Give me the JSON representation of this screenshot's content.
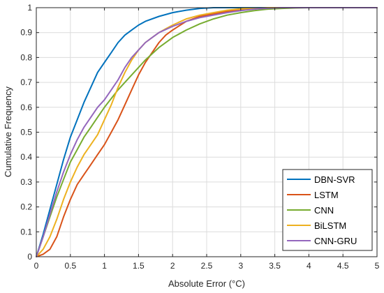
{
  "chart_data": {
    "type": "line",
    "title": "",
    "xlabel": "Absolute Error (°C)",
    "ylabel": "Cumulative Frequency",
    "xlim": [
      0,
      5
    ],
    "ylim": [
      0,
      1
    ],
    "x_ticks": [
      "0",
      "0.5",
      "1",
      "1.5",
      "2",
      "2.5",
      "3",
      "3.5",
      "4",
      "4.5",
      "5"
    ],
    "y_ticks": [
      "0",
      "0.1",
      "0.2",
      "0.3",
      "0.4",
      "0.5",
      "0.6",
      "0.7",
      "0.8",
      "0.9",
      "1"
    ],
    "grid": true,
    "legend_position": "bottom-right",
    "series": [
      {
        "name": "DBN-SVR",
        "color": "#0072BD",
        "x": [
          0,
          0.1,
          0.2,
          0.3,
          0.4,
          0.5,
          0.6,
          0.7,
          0.8,
          0.9,
          1.0,
          1.1,
          1.2,
          1.3,
          1.4,
          1.5,
          1.6,
          1.8,
          2.0,
          2.2,
          2.4,
          2.6,
          2.8,
          3.0,
          5.0
        ],
        "y": [
          0,
          0.09,
          0.19,
          0.29,
          0.39,
          0.48,
          0.55,
          0.62,
          0.68,
          0.74,
          0.78,
          0.82,
          0.86,
          0.89,
          0.91,
          0.93,
          0.945,
          0.965,
          0.98,
          0.99,
          0.997,
          1.0,
          1.0,
          1.0,
          1.0
        ]
      },
      {
        "name": "LSTM",
        "color": "#D95319",
        "x": [
          0,
          0.1,
          0.2,
          0.3,
          0.4,
          0.5,
          0.6,
          0.7,
          0.8,
          0.9,
          1.0,
          1.1,
          1.2,
          1.3,
          1.4,
          1.5,
          1.6,
          1.7,
          1.8,
          1.9,
          2.0,
          2.2,
          2.4,
          2.6,
          2.8,
          3.0,
          3.2,
          3.4,
          3.6,
          3.8,
          5.0
        ],
        "y": [
          0,
          0.01,
          0.03,
          0.08,
          0.16,
          0.23,
          0.29,
          0.33,
          0.37,
          0.41,
          0.45,
          0.5,
          0.55,
          0.61,
          0.67,
          0.73,
          0.78,
          0.82,
          0.86,
          0.89,
          0.91,
          0.945,
          0.965,
          0.975,
          0.985,
          0.992,
          0.996,
          0.998,
          1.0,
          1.0,
          1.0
        ]
      },
      {
        "name": "CNN",
        "color": "#77AC30",
        "x": [
          0,
          0.1,
          0.2,
          0.3,
          0.4,
          0.5,
          0.6,
          0.7,
          0.8,
          0.9,
          1.0,
          1.2,
          1.4,
          1.6,
          1.8,
          2.0,
          2.2,
          2.4,
          2.6,
          2.8,
          3.0,
          3.2,
          3.4,
          3.6,
          3.8,
          4.0,
          5.0
        ],
        "y": [
          0,
          0.08,
          0.16,
          0.24,
          0.31,
          0.38,
          0.43,
          0.48,
          0.52,
          0.56,
          0.6,
          0.67,
          0.73,
          0.79,
          0.84,
          0.88,
          0.91,
          0.935,
          0.955,
          0.97,
          0.98,
          0.988,
          0.994,
          0.997,
          0.999,
          1.0,
          1.0
        ]
      },
      {
        "name": "BiLSTM",
        "color": "#EDB120",
        "x": [
          0,
          0.1,
          0.2,
          0.3,
          0.4,
          0.5,
          0.6,
          0.7,
          0.8,
          0.9,
          1.0,
          1.1,
          1.2,
          1.3,
          1.4,
          1.5,
          1.6,
          1.7,
          1.8,
          1.9,
          2.0,
          2.2,
          2.4,
          2.6,
          2.8,
          3.0,
          3.2,
          3.4,
          5.0
        ],
        "y": [
          0,
          0.03,
          0.08,
          0.15,
          0.23,
          0.3,
          0.36,
          0.41,
          0.45,
          0.49,
          0.55,
          0.61,
          0.68,
          0.74,
          0.79,
          0.83,
          0.86,
          0.88,
          0.9,
          0.915,
          0.93,
          0.955,
          0.97,
          0.98,
          0.99,
          0.995,
          0.998,
          1.0,
          1.0
        ]
      },
      {
        "name": "CNN-GRU",
        "color": "#9467BD",
        "x": [
          0,
          0.1,
          0.2,
          0.3,
          0.4,
          0.5,
          0.6,
          0.7,
          0.8,
          0.9,
          1.0,
          1.1,
          1.2,
          1.3,
          1.4,
          1.5,
          1.6,
          1.7,
          1.8,
          2.0,
          2.2,
          2.4,
          2.6,
          2.8,
          3.0,
          3.2,
          3.4,
          3.6,
          5.0
        ],
        "y": [
          0,
          0.08,
          0.17,
          0.26,
          0.34,
          0.41,
          0.47,
          0.52,
          0.56,
          0.6,
          0.63,
          0.67,
          0.71,
          0.76,
          0.8,
          0.83,
          0.86,
          0.88,
          0.9,
          0.925,
          0.945,
          0.96,
          0.97,
          0.98,
          0.988,
          0.994,
          0.998,
          1.0,
          1.0
        ]
      }
    ]
  }
}
